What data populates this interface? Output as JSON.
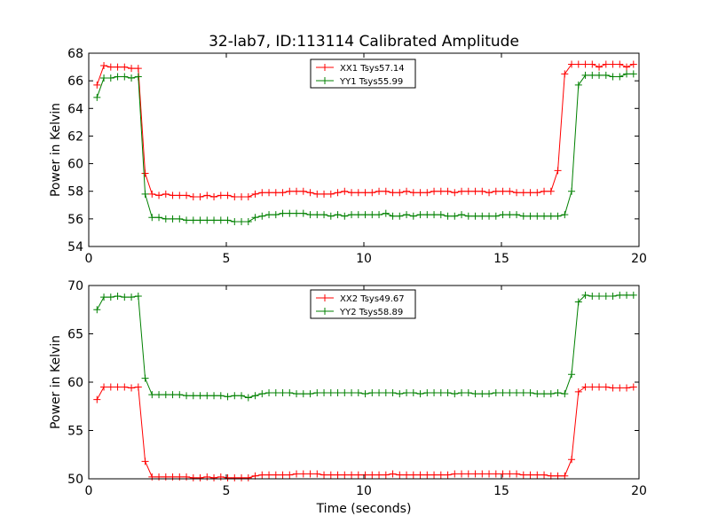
{
  "title": "32-lab7, ID:113114 Calibrated Amplitude",
  "xlabel": "Time (seconds)",
  "chart_data": [
    {
      "type": "line",
      "title": "32-lab7, ID:113114 Calibrated Amplitude",
      "ylabel": "Power in Kelvin",
      "xlabel": "",
      "xlim": [
        0,
        20
      ],
      "ylim": [
        54,
        68
      ],
      "xticks": [
        0,
        5,
        10,
        15,
        20
      ],
      "yticks": [
        54,
        56,
        58,
        60,
        62,
        64,
        66,
        68
      ],
      "legend": "top-center",
      "series": [
        {
          "name": "XX1 Tsys57.14",
          "color": "#ff0000",
          "x": [
            0.3,
            0.55,
            0.8,
            1.05,
            1.3,
            1.55,
            1.8,
            2.05,
            2.3,
            2.55,
            2.8,
            3.05,
            3.3,
            3.55,
            3.8,
            4.05,
            4.3,
            4.55,
            4.8,
            5.05,
            5.3,
            5.55,
            5.8,
            6.05,
            6.3,
            6.55,
            6.8,
            7.05,
            7.3,
            7.55,
            7.8,
            8.05,
            8.3,
            8.55,
            8.8,
            9.05,
            9.3,
            9.55,
            9.8,
            10.05,
            10.3,
            10.55,
            10.8,
            11.05,
            11.3,
            11.55,
            11.8,
            12.05,
            12.3,
            12.55,
            12.8,
            13.05,
            13.3,
            13.55,
            13.8,
            14.05,
            14.3,
            14.55,
            14.8,
            15.05,
            15.3,
            15.55,
            15.8,
            16.05,
            16.3,
            16.55,
            16.8,
            17.05,
            17.3,
            17.55,
            17.8,
            18.05,
            18.3,
            18.55,
            18.8,
            19.05,
            19.3,
            19.55,
            19.8
          ],
          "y": [
            65.7,
            67.1,
            67.0,
            67.0,
            67.0,
            66.9,
            66.9,
            59.3,
            57.8,
            57.7,
            57.8,
            57.7,
            57.7,
            57.7,
            57.6,
            57.6,
            57.7,
            57.6,
            57.7,
            57.7,
            57.6,
            57.6,
            57.6,
            57.8,
            57.9,
            57.9,
            57.9,
            57.9,
            58.0,
            58.0,
            58.0,
            57.9,
            57.8,
            57.8,
            57.8,
            57.9,
            58.0,
            57.9,
            57.9,
            57.9,
            57.9,
            58.0,
            58.0,
            57.9,
            57.9,
            58.0,
            57.9,
            57.9,
            57.9,
            58.0,
            58.0,
            58.0,
            57.9,
            58.0,
            58.0,
            58.0,
            58.0,
            57.9,
            58.0,
            58.0,
            58.0,
            57.9,
            57.9,
            57.9,
            57.9,
            58.0,
            58.0,
            59.5,
            66.5,
            67.2,
            67.2,
            67.2,
            67.2,
            67.0,
            67.2,
            67.2,
            67.2,
            67.0,
            67.2
          ]
        },
        {
          "name": "YY1 Tsys55.99",
          "color": "#008000",
          "x": [
            0.3,
            0.55,
            0.8,
            1.05,
            1.3,
            1.55,
            1.8,
            2.05,
            2.3,
            2.55,
            2.8,
            3.05,
            3.3,
            3.55,
            3.8,
            4.05,
            4.3,
            4.55,
            4.8,
            5.05,
            5.3,
            5.55,
            5.8,
            6.05,
            6.3,
            6.55,
            6.8,
            7.05,
            7.3,
            7.55,
            7.8,
            8.05,
            8.3,
            8.55,
            8.8,
            9.05,
            9.3,
            9.55,
            9.8,
            10.05,
            10.3,
            10.55,
            10.8,
            11.05,
            11.3,
            11.55,
            11.8,
            12.05,
            12.3,
            12.55,
            12.8,
            13.05,
            13.3,
            13.55,
            13.8,
            14.05,
            14.3,
            14.55,
            14.8,
            15.05,
            15.3,
            15.55,
            15.8,
            16.05,
            16.3,
            16.55,
            16.8,
            17.05,
            17.3,
            17.55,
            17.8,
            18.05,
            18.3,
            18.55,
            18.8,
            19.05,
            19.3,
            19.55,
            19.8
          ],
          "y": [
            64.8,
            66.2,
            66.2,
            66.3,
            66.3,
            66.2,
            66.3,
            57.8,
            56.1,
            56.1,
            56.0,
            56.0,
            56.0,
            55.9,
            55.9,
            55.9,
            55.9,
            55.9,
            55.9,
            55.9,
            55.8,
            55.8,
            55.8,
            56.1,
            56.2,
            56.3,
            56.3,
            56.4,
            56.4,
            56.4,
            56.4,
            56.3,
            56.3,
            56.3,
            56.2,
            56.3,
            56.2,
            56.3,
            56.3,
            56.3,
            56.3,
            56.3,
            56.4,
            56.2,
            56.2,
            56.3,
            56.2,
            56.3,
            56.3,
            56.3,
            56.3,
            56.2,
            56.2,
            56.3,
            56.2,
            56.2,
            56.2,
            56.2,
            56.2,
            56.3,
            56.3,
            56.3,
            56.2,
            56.2,
            56.2,
            56.2,
            56.2,
            56.2,
            56.3,
            58.0,
            65.7,
            66.4,
            66.4,
            66.4,
            66.4,
            66.3,
            66.3,
            66.5,
            66.5
          ]
        }
      ]
    },
    {
      "type": "line",
      "title": "",
      "ylabel": "Power in Kelvin",
      "xlabel": "Time (seconds)",
      "xlim": [
        0,
        20
      ],
      "ylim": [
        50,
        70
      ],
      "xticks": [
        0,
        5,
        10,
        15,
        20
      ],
      "yticks": [
        50,
        55,
        60,
        65,
        70
      ],
      "legend": "top-center",
      "series": [
        {
          "name": "XX2 Tsys49.67",
          "color": "#ff0000",
          "x": [
            0.3,
            0.55,
            0.8,
            1.05,
            1.3,
            1.55,
            1.8,
            2.05,
            2.3,
            2.55,
            2.8,
            3.05,
            3.3,
            3.55,
            3.8,
            4.05,
            4.3,
            4.55,
            4.8,
            5.05,
            5.3,
            5.55,
            5.8,
            6.05,
            6.3,
            6.55,
            6.8,
            7.05,
            7.3,
            7.55,
            7.8,
            8.05,
            8.3,
            8.55,
            8.8,
            9.05,
            9.3,
            9.55,
            9.8,
            10.05,
            10.3,
            10.55,
            10.8,
            11.05,
            11.3,
            11.55,
            11.8,
            12.05,
            12.3,
            12.55,
            12.8,
            13.05,
            13.3,
            13.55,
            13.8,
            14.05,
            14.3,
            14.55,
            14.8,
            15.05,
            15.3,
            15.55,
            15.8,
            16.05,
            16.3,
            16.55,
            16.8,
            17.05,
            17.3,
            17.55,
            17.8,
            18.05,
            18.3,
            18.55,
            18.8,
            19.05,
            19.3,
            19.55,
            19.8
          ],
          "y": [
            58.2,
            59.5,
            59.5,
            59.5,
            59.5,
            59.4,
            59.5,
            51.8,
            50.2,
            50.2,
            50.2,
            50.2,
            50.2,
            50.2,
            50.1,
            50.1,
            50.2,
            50.1,
            50.2,
            50.1,
            50.1,
            50.1,
            50.1,
            50.3,
            50.4,
            50.4,
            50.4,
            50.4,
            50.4,
            50.5,
            50.5,
            50.5,
            50.5,
            50.4,
            50.4,
            50.4,
            50.4,
            50.4,
            50.4,
            50.4,
            50.4,
            50.4,
            50.4,
            50.5,
            50.4,
            50.4,
            50.4,
            50.4,
            50.4,
            50.4,
            50.4,
            50.4,
            50.5,
            50.5,
            50.5,
            50.5,
            50.5,
            50.5,
            50.5,
            50.5,
            50.5,
            50.5,
            50.4,
            50.4,
            50.4,
            50.4,
            50.3,
            50.3,
            50.3,
            52.0,
            59.0,
            59.5,
            59.5,
            59.5,
            59.5,
            59.4,
            59.4,
            59.4,
            59.5
          ]
        },
        {
          "name": "YY2 Tsys58.89",
          "color": "#008000",
          "x": [
            0.3,
            0.55,
            0.8,
            1.05,
            1.3,
            1.55,
            1.8,
            2.05,
            2.3,
            2.55,
            2.8,
            3.05,
            3.3,
            3.55,
            3.8,
            4.05,
            4.3,
            4.55,
            4.8,
            5.05,
            5.3,
            5.55,
            5.8,
            6.05,
            6.3,
            6.55,
            6.8,
            7.05,
            7.3,
            7.55,
            7.8,
            8.05,
            8.3,
            8.55,
            8.8,
            9.05,
            9.3,
            9.55,
            9.8,
            10.05,
            10.3,
            10.55,
            10.8,
            11.05,
            11.3,
            11.55,
            11.8,
            12.05,
            12.3,
            12.55,
            12.8,
            13.05,
            13.3,
            13.55,
            13.8,
            14.05,
            14.3,
            14.55,
            14.8,
            15.05,
            15.3,
            15.55,
            15.8,
            16.05,
            16.3,
            16.55,
            16.8,
            17.05,
            17.3,
            17.55,
            17.8,
            18.05,
            18.3,
            18.55,
            18.8,
            19.05,
            19.3,
            19.55,
            19.8
          ],
          "y": [
            67.5,
            68.8,
            68.8,
            68.9,
            68.8,
            68.8,
            68.9,
            60.4,
            58.7,
            58.7,
            58.7,
            58.7,
            58.7,
            58.6,
            58.6,
            58.6,
            58.6,
            58.6,
            58.6,
            58.5,
            58.6,
            58.6,
            58.4,
            58.6,
            58.8,
            58.9,
            58.9,
            58.9,
            58.9,
            58.8,
            58.8,
            58.8,
            58.9,
            58.9,
            58.9,
            58.9,
            58.9,
            58.9,
            58.9,
            58.8,
            58.9,
            58.9,
            58.9,
            58.9,
            58.8,
            58.9,
            58.9,
            58.8,
            58.9,
            58.9,
            58.9,
            58.9,
            58.8,
            58.9,
            58.9,
            58.8,
            58.8,
            58.8,
            58.9,
            58.9,
            58.9,
            58.9,
            58.9,
            58.9,
            58.8,
            58.8,
            58.8,
            58.9,
            58.8,
            60.8,
            68.3,
            69.0,
            68.9,
            68.9,
            68.9,
            68.9,
            69.0,
            69.0,
            69.0
          ]
        }
      ]
    }
  ]
}
